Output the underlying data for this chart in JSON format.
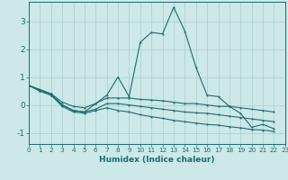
{
  "xlabel": "Humidex (Indice chaleur)",
  "background_color": "#cce8e8",
  "grid_color": "#aacece",
  "line_color": "#1a6e6e",
  "xlim": [
    0,
    23
  ],
  "ylim": [
    -1.4,
    3.7
  ],
  "yticks": [
    -1,
    0,
    1,
    2,
    3
  ],
  "xtick_labels": [
    "0",
    "1",
    "2",
    "3",
    "4",
    "5",
    "6",
    "7",
    "8",
    "9",
    "10",
    "11",
    "12",
    "13",
    "14",
    "15",
    "16",
    "17",
    "18",
    "19",
    "20",
    "21",
    "22",
    "23"
  ],
  "series": [
    [
      0.7,
      0.55,
      0.4,
      0.0,
      -0.2,
      -0.25,
      0.05,
      0.35,
      1.0,
      0.3,
      2.25,
      2.6,
      2.55,
      3.5,
      2.65,
      1.35,
      0.35,
      0.3,
      -0.05,
      -0.3,
      -0.8,
      -0.7,
      -0.85
    ],
    [
      0.7,
      0.55,
      0.4,
      0.1,
      -0.05,
      -0.1,
      0.05,
      0.25,
      0.25,
      0.25,
      0.2,
      0.18,
      0.15,
      0.1,
      0.05,
      0.05,
      0.0,
      -0.05,
      -0.05,
      -0.1,
      -0.15,
      -0.2,
      -0.25
    ],
    [
      0.7,
      0.5,
      0.35,
      0.0,
      -0.2,
      -0.25,
      -0.15,
      0.05,
      0.05,
      0.0,
      -0.05,
      -0.1,
      -0.15,
      -0.2,
      -0.25,
      -0.28,
      -0.3,
      -0.35,
      -0.4,
      -0.45,
      -0.5,
      -0.55,
      -0.6
    ],
    [
      0.7,
      0.5,
      0.35,
      -0.05,
      -0.25,
      -0.3,
      -0.2,
      -0.1,
      -0.2,
      -0.25,
      -0.35,
      -0.42,
      -0.48,
      -0.55,
      -0.6,
      -0.65,
      -0.7,
      -0.72,
      -0.78,
      -0.82,
      -0.88,
      -0.9,
      -0.95
    ]
  ]
}
